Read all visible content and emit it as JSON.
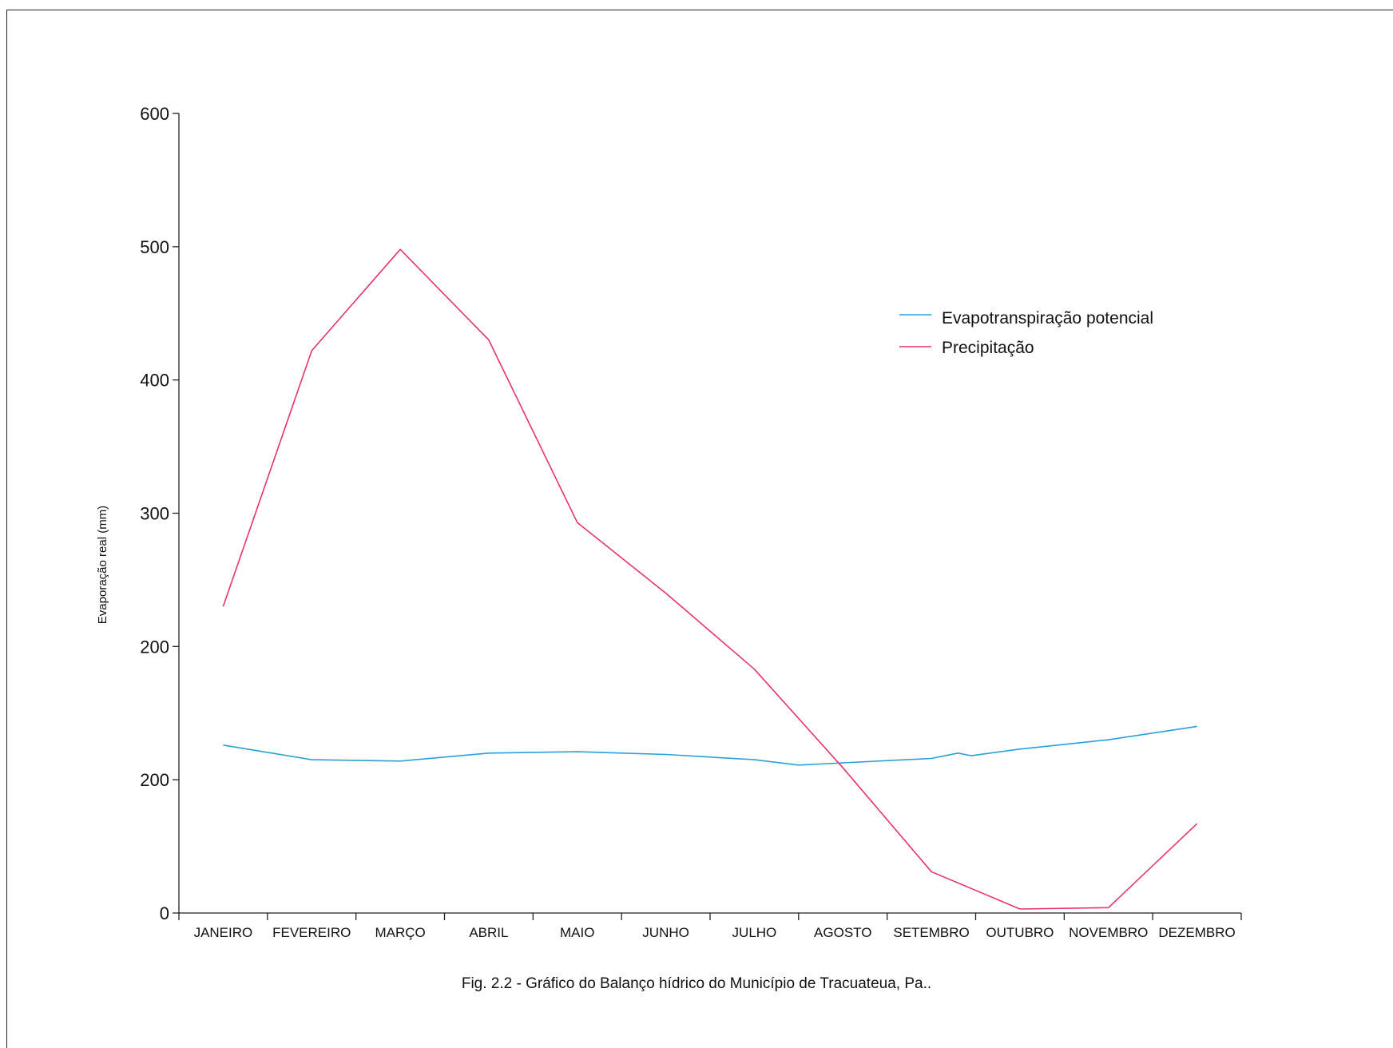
{
  "chart_data": {
    "type": "line",
    "caption": "Fig. 2.2 - Gráfico do Balanço hídrico do Município de Tracuateua, Pa..",
    "xlabel": "",
    "ylabel": "Evaporação real (mm)",
    "categories": [
      "JANEIRO",
      "FEVEREIRO",
      "MARÇO",
      "ABRIL",
      "MAIO",
      "JUNHO",
      "JULHO",
      "AGOSTO",
      "SETEMBRO",
      "OUTUBRO",
      "NOVEMBRO",
      "DEZEMBRO"
    ],
    "ytick_labels": [
      "0",
      "200",
      "200",
      "300",
      "400",
      "500",
      "600"
    ],
    "ylim": [
      0,
      600
    ],
    "grid": false,
    "legend_position": "top-right",
    "x": [
      0.5,
      1.5,
      2.5,
      3.5,
      4.5,
      5.5,
      6.5,
      7.0,
      7.5,
      8.5,
      8.8,
      9.5,
      10.5,
      11.5
    ],
    "series": [
      {
        "name": "Evapotranspiração potencial",
        "color": "#2a9fd8",
        "x": [
          0.5,
          1.5,
          2.5,
          3.5,
          4.5,
          5.5,
          6.5,
          7.0,
          8.5,
          8.8,
          8.95,
          9.5,
          10.5,
          11.5
        ],
        "values": [
          126,
          115,
          114,
          120,
          121,
          119,
          115,
          111,
          116,
          120,
          118,
          123,
          130,
          140
        ]
      },
      {
        "name": "Precipitação",
        "color": "#e8326e",
        "x": [
          0.5,
          1.5,
          2.5,
          3.5,
          4.5,
          5.5,
          6.5,
          7.5,
          8.5,
          9.5,
          10.5,
          11.5
        ],
        "values": [
          230,
          422,
          498,
          430,
          293,
          240,
          183,
          109,
          31,
          3,
          4,
          67
        ]
      }
    ]
  }
}
